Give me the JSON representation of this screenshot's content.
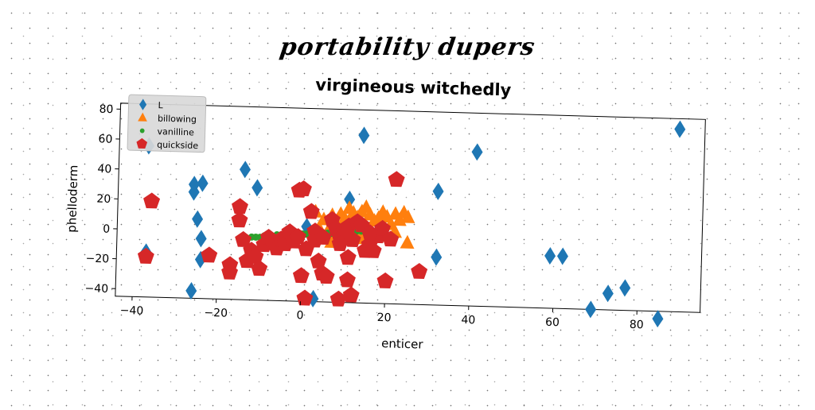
{
  "page_title": "portability dupers",
  "chart_data": {
    "type": "scatter",
    "title": "virgineous witchedly",
    "xlabel": "enticer",
    "ylabel": "phelloderm",
    "xlim": [
      -44,
      95
    ],
    "ylim": [
      -45,
      84
    ],
    "xticks": [
      -40,
      -20,
      0,
      20,
      40,
      60,
      80
    ],
    "yticks": [
      -40,
      -20,
      0,
      20,
      40,
      60,
      80
    ],
    "grid": false,
    "legend_position": "top-left",
    "series": [
      {
        "name": "L",
        "marker": "diamond",
        "color": "#1f77b4",
        "points": [
          [
            89,
            77
          ],
          [
            -37,
            56
          ],
          [
            14,
            67
          ],
          [
            41,
            58
          ],
          [
            -14,
            42
          ],
          [
            -24,
            32
          ],
          [
            -26,
            31
          ],
          [
            -26,
            26
          ],
          [
            -11,
            30
          ],
          [
            11,
            24
          ],
          [
            32,
            31
          ],
          [
            -25,
            8
          ],
          [
            -24,
            -5
          ],
          [
            -37,
            -15
          ],
          [
            -24,
            -19
          ],
          [
            32,
            -13
          ],
          [
            59,
            -10
          ],
          [
            62,
            -10
          ],
          [
            -26,
            -40
          ],
          [
            3,
            -43
          ],
          [
            69,
            -45
          ],
          [
            73,
            -34
          ],
          [
            77,
            -30
          ],
          [
            85,
            -50
          ],
          [
            1,
            5
          ]
        ]
      },
      {
        "name": "billowing",
        "marker": "triangle",
        "color": "#ff7f0e",
        "points": [
          [
            3,
            15
          ],
          [
            5,
            10
          ],
          [
            7,
            13
          ],
          [
            9,
            14
          ],
          [
            10,
            11
          ],
          [
            11,
            18
          ],
          [
            12,
            15
          ],
          [
            13,
            12
          ],
          [
            14,
            16
          ],
          [
            15,
            19
          ],
          [
            16,
            14
          ],
          [
            17,
            10
          ],
          [
            18,
            12
          ],
          [
            19,
            16
          ],
          [
            20,
            13
          ],
          [
            21,
            8
          ],
          [
            22,
            15
          ],
          [
            23,
            11
          ],
          [
            24,
            16
          ],
          [
            25,
            13
          ],
          [
            4,
            4
          ],
          [
            6,
            2
          ],
          [
            8,
            5
          ],
          [
            12,
            3
          ],
          [
            15,
            4
          ],
          [
            18,
            2
          ],
          [
            20,
            0
          ],
          [
            22,
            3
          ],
          [
            25,
            -4
          ],
          [
            14,
            -2
          ],
          [
            7,
            -5
          ]
        ]
      },
      {
        "name": "vanilline",
        "marker": "circle",
        "color": "#2ca02c",
        "points": [
          [
            -14,
            -4
          ],
          [
            -13,
            -4
          ],
          [
            -12,
            -3
          ],
          [
            -11,
            -3
          ],
          [
            -10,
            -3
          ],
          [
            -9,
            -2
          ],
          [
            -8,
            -2
          ],
          [
            -7,
            -2
          ],
          [
            -6,
            -1
          ],
          [
            -5,
            -1
          ],
          [
            -4,
            -1
          ],
          [
            -3,
            -1
          ],
          [
            -2,
            0
          ],
          [
            -1,
            0
          ],
          [
            0,
            0
          ],
          [
            1,
            0
          ],
          [
            2,
            0
          ],
          [
            3,
            1
          ],
          [
            4,
            1
          ],
          [
            5,
            1
          ],
          [
            6,
            1
          ],
          [
            7,
            1
          ],
          [
            8,
            2
          ],
          [
            9,
            2
          ],
          [
            10,
            2
          ],
          [
            11,
            2
          ],
          [
            12,
            2
          ],
          [
            13,
            3
          ],
          [
            14,
            3
          ],
          [
            15,
            3
          ],
          [
            16,
            3
          ]
        ]
      },
      {
        "name": "quickside",
        "marker": "pentagon",
        "color": "#d62728",
        "points": [
          [
            -37,
            -18
          ],
          [
            -36,
            19
          ],
          [
            -22,
            -16
          ],
          [
            -17,
            -22
          ],
          [
            -17,
            -27
          ],
          [
            -15,
            8
          ],
          [
            -15,
            17
          ],
          [
            -14,
            -5
          ],
          [
            -13,
            -19
          ],
          [
            -12,
            -12
          ],
          [
            -11,
            -16
          ],
          [
            -10,
            -24
          ],
          [
            -9,
            -8
          ],
          [
            -8,
            -3
          ],
          [
            -7,
            -6
          ],
          [
            -6,
            -10
          ],
          [
            -5,
            -4
          ],
          [
            -4,
            -7
          ],
          [
            -3,
            1
          ],
          [
            -2,
            -5
          ],
          [
            -1,
            -2
          ],
          [
            0,
            30
          ],
          [
            -1,
            29
          ],
          [
            1,
            -10
          ],
          [
            2,
            15
          ],
          [
            3,
            2
          ],
          [
            4,
            -18
          ],
          [
            5,
            -26
          ],
          [
            6,
            -28
          ],
          [
            7,
            10
          ],
          [
            8,
            4
          ],
          [
            9,
            -2
          ],
          [
            10,
            3
          ],
          [
            11,
            6
          ],
          [
            12,
            -3
          ],
          [
            11,
            -15
          ],
          [
            11,
            -30
          ],
          [
            12,
            -40
          ],
          [
            9,
            -43
          ],
          [
            1,
            -43
          ],
          [
            0,
            -28
          ],
          [
            15,
            -10
          ],
          [
            16,
            -6
          ],
          [
            17,
            -10
          ],
          [
            18,
            0
          ],
          [
            19,
            5
          ],
          [
            21,
            -2
          ],
          [
            22,
            38
          ],
          [
            20,
            -30
          ],
          [
            28,
            -23
          ],
          [
            13,
            9
          ],
          [
            14,
            7
          ],
          [
            10,
            0
          ],
          [
            9,
            -6
          ],
          [
            16,
            2
          ],
          [
            3,
            -4
          ],
          [
            5,
            -2
          ]
        ]
      }
    ]
  }
}
